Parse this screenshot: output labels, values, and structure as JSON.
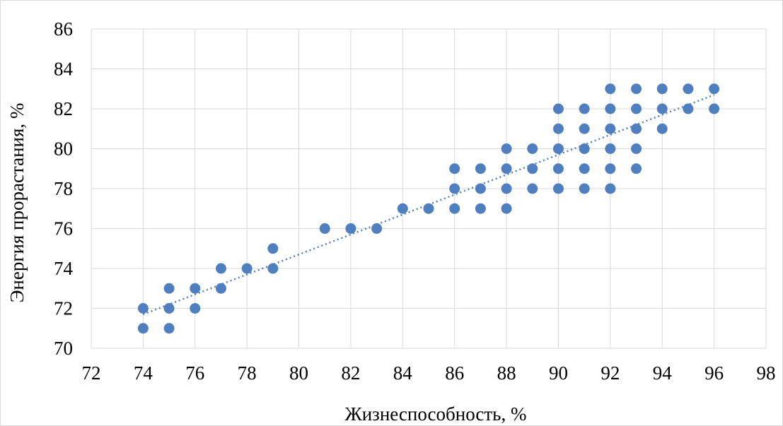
{
  "chart_data": {
    "type": "scatter",
    "title": "",
    "xlabel": "Жизнеспособность, %",
    "ylabel": "Энергия прорастания, %",
    "xlim": [
      72,
      98
    ],
    "ylim": [
      70,
      86
    ],
    "xticks": [
      "72",
      "74",
      "76",
      "78",
      "80",
      "82",
      "84",
      "86",
      "88",
      "90",
      "92",
      "94",
      "96",
      "98"
    ],
    "yticks": [
      "70",
      "72",
      "74",
      "76",
      "78",
      "80",
      "82",
      "84",
      "86"
    ],
    "grid": true,
    "legend": "none",
    "marker_color": "#4f7fbf",
    "trendline": {
      "type": "linear",
      "style": "dotted",
      "from": [
        74,
        71.7
      ],
      "to": [
        96,
        82.7
      ]
    },
    "series": [
      {
        "points": [
          [
            74,
            72
          ],
          [
            74,
            71
          ],
          [
            75,
            73
          ],
          [
            75,
            72
          ],
          [
            75,
            71
          ],
          [
            76,
            73
          ],
          [
            76,
            72
          ],
          [
            77,
            74
          ],
          [
            77,
            73
          ],
          [
            78,
            74
          ],
          [
            79,
            75
          ],
          [
            79,
            74
          ],
          [
            81,
            76
          ],
          [
            82,
            76
          ],
          [
            83,
            76
          ],
          [
            84,
            77
          ],
          [
            85,
            77
          ],
          [
            86,
            79
          ],
          [
            86,
            78
          ],
          [
            86,
            77
          ],
          [
            87,
            79
          ],
          [
            87,
            78
          ],
          [
            87,
            77
          ],
          [
            88,
            80
          ],
          [
            88,
            79
          ],
          [
            88,
            78
          ],
          [
            88,
            77
          ],
          [
            89,
            80
          ],
          [
            89,
            79
          ],
          [
            89,
            78
          ],
          [
            90,
            82
          ],
          [
            90,
            81
          ],
          [
            90,
            80
          ],
          [
            90,
            79
          ],
          [
            90,
            78
          ],
          [
            91,
            82
          ],
          [
            91,
            81
          ],
          [
            91,
            80
          ],
          [
            91,
            79
          ],
          [
            91,
            78
          ],
          [
            92,
            83
          ],
          [
            92,
            82
          ],
          [
            92,
            81
          ],
          [
            92,
            80
          ],
          [
            92,
            79
          ],
          [
            92,
            78
          ],
          [
            93,
            83
          ],
          [
            93,
            82
          ],
          [
            93,
            81
          ],
          [
            93,
            80
          ],
          [
            93,
            79
          ],
          [
            94,
            83
          ],
          [
            94,
            82
          ],
          [
            94,
            81
          ],
          [
            95,
            83
          ],
          [
            95,
            82
          ],
          [
            96,
            83
          ],
          [
            96,
            82
          ]
        ]
      }
    ]
  }
}
